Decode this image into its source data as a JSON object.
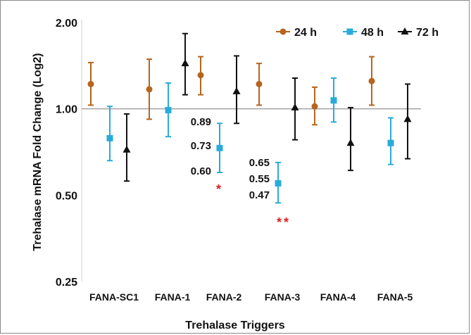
{
  "chart_data": {
    "type": "scatter",
    "title": "",
    "xlabel": "Trehalase Triggers",
    "ylabel": "Trehalase  mRNA Fold  Change (Log2)",
    "yscale": "log2",
    "ylim": [
      0.25,
      2.0
    ],
    "yticks": [
      0.25,
      0.5,
      1.0,
      2.0
    ],
    "ytick_labels": [
      "0.25",
      "0.50",
      "1.00",
      "2.00"
    ],
    "reference_line": 1.0,
    "categories": [
      "FANA-SC1",
      "FANA-1",
      "FANA-2",
      "FANA-3",
      "FANA-4",
      "FANA-5"
    ],
    "legend_position": "top-right",
    "series": [
      {
        "name": "24 h",
        "color": "#b5651d",
        "marker": "circle",
        "values": [
          1.22,
          1.17,
          1.31,
          1.22,
          1.02,
          1.25
        ],
        "lower": [
          1.03,
          0.92,
          1.12,
          1.03,
          0.88,
          1.03
        ],
        "upper": [
          1.45,
          1.49,
          1.52,
          1.44,
          1.19,
          1.52
        ]
      },
      {
        "name": "48 h",
        "color": "#29abd9",
        "marker": "square",
        "values": [
          0.79,
          0.99,
          0.73,
          0.55,
          1.07,
          0.76
        ],
        "lower": [
          0.66,
          0.8,
          0.6,
          0.47,
          0.9,
          0.64
        ],
        "upper": [
          1.02,
          1.23,
          0.89,
          0.65,
          1.28,
          0.93
        ]
      },
      {
        "name": "72 h",
        "color": "#111111",
        "marker": "triangle",
        "values": [
          0.72,
          1.44,
          1.15,
          1.01,
          0.76,
          0.92
        ],
        "lower": [
          0.56,
          1.12,
          0.89,
          0.78,
          0.61,
          0.67
        ],
        "upper": [
          0.96,
          1.83,
          1.53,
          1.28,
          1.01,
          1.22
        ]
      }
    ],
    "annotations": [
      {
        "category": "FANA-2",
        "labels": [
          "0.89",
          "0.73",
          "0.60"
        ],
        "values": [
          0.89,
          0.73,
          0.6
        ],
        "significance": "*"
      },
      {
        "category": "FANA-3",
        "labels": [
          "0.65",
          "0.55",
          "0.47"
        ],
        "values": [
          0.65,
          0.55,
          0.47
        ],
        "significance": "**"
      }
    ]
  }
}
